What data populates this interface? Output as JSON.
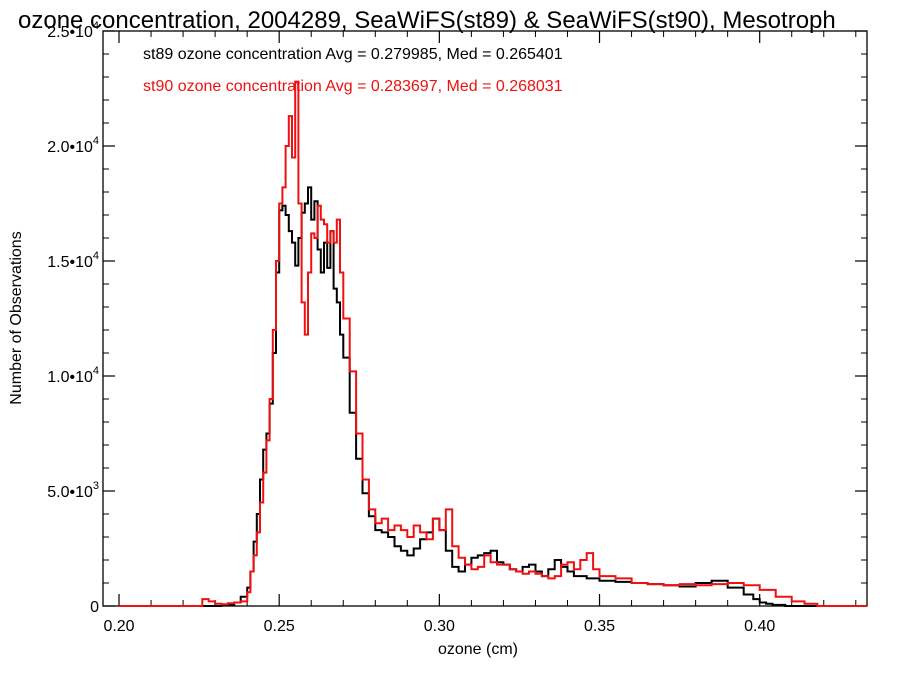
{
  "chart_data": {
    "type": "line",
    "title": "ozone concentration, 2004289, SeaWiFS(st89) & SeaWiFS(st90), Mesotroph",
    "xlabel": "ozone (cm)",
    "ylabel": "Number of Observations",
    "xlim": [
      0.195,
      0.4335
    ],
    "ylim": [
      0,
      25000
    ],
    "x_ticks": [
      0.2,
      0.25,
      0.3,
      0.35,
      0.4
    ],
    "x_tick_labels": [
      "0.20",
      "0.25",
      "0.30",
      "0.35",
      "0.40"
    ],
    "y_ticks": [
      0,
      5000,
      10000,
      15000,
      20000,
      25000
    ],
    "y_tick_labels": [
      {
        "mant": "0",
        "exp": ""
      },
      {
        "mant": "5.0•10",
        "exp": "3"
      },
      {
        "mant": "1.0•10",
        "exp": "4"
      },
      {
        "mant": "1.5•10",
        "exp": "4"
      },
      {
        "mant": "2.0•10",
        "exp": "4"
      },
      {
        "mant": "2.5•10",
        "exp": "4"
      }
    ],
    "legend_placement": "top-left",
    "series": [
      {
        "name": "st89",
        "color": "#000000",
        "legend": "st89 ozone concentration Avg = 0.279985, Med = 0.265401",
        "x": [
          0.2,
          0.225,
          0.232,
          0.236,
          0.238,
          0.24,
          0.241,
          0.242,
          0.243,
          0.244,
          0.245,
          0.246,
          0.247,
          0.248,
          0.249,
          0.25,
          0.251,
          0.252,
          0.253,
          0.254,
          0.255,
          0.256,
          0.257,
          0.258,
          0.259,
          0.26,
          0.261,
          0.262,
          0.263,
          0.264,
          0.265,
          0.266,
          0.267,
          0.268,
          0.269,
          0.27,
          0.272,
          0.274,
          0.276,
          0.278,
          0.28,
          0.282,
          0.284,
          0.286,
          0.288,
          0.29,
          0.292,
          0.294,
          0.296,
          0.298,
          0.3,
          0.302,
          0.304,
          0.306,
          0.308,
          0.31,
          0.312,
          0.314,
          0.316,
          0.318,
          0.32,
          0.322,
          0.324,
          0.326,
          0.328,
          0.33,
          0.332,
          0.334,
          0.336,
          0.338,
          0.34,
          0.342,
          0.344,
          0.346,
          0.348,
          0.35,
          0.355,
          0.36,
          0.365,
          0.37,
          0.375,
          0.38,
          0.385,
          0.39,
          0.395,
          0.398,
          0.4,
          0.402,
          0.404,
          0.408,
          0.412
        ],
        "values": [
          0,
          0,
          50,
          150,
          400,
          800,
          1500,
          2800,
          4000,
          5500,
          6800,
          7500,
          8800,
          11000,
          14500,
          17200,
          17400,
          17000,
          16300,
          15800,
          14800,
          16000,
          17100,
          17500,
          18200,
          16800,
          17600,
          15500,
          14500,
          15800,
          14700,
          16300,
          13800,
          13200,
          11800,
          10800,
          8400,
          6400,
          4900,
          3900,
          3300,
          3200,
          3000,
          2600,
          2400,
          2200,
          2500,
          2900,
          3200,
          3800,
          3300,
          2400,
          1700,
          1500,
          1800,
          2100,
          2200,
          2300,
          2400,
          1900,
          1800,
          1600,
          1500,
          1700,
          1800,
          1500,
          1300,
          1600,
          2000,
          1700,
          1500,
          1300,
          1300,
          1200,
          1200,
          1100,
          1050,
          1000,
          950,
          900,
          850,
          1000,
          1100,
          800,
          500,
          300,
          150,
          100,
          50,
          0,
          0
        ]
      },
      {
        "name": "st90",
        "color": "#ee1111",
        "legend": "st90 ozone concentration Avg = 0.283697, Med = 0.268031",
        "x": [
          0.2,
          0.222,
          0.226,
          0.228,
          0.23,
          0.232,
          0.234,
          0.236,
          0.238,
          0.24,
          0.241,
          0.242,
          0.243,
          0.244,
          0.245,
          0.246,
          0.247,
          0.248,
          0.249,
          0.25,
          0.251,
          0.252,
          0.253,
          0.254,
          0.255,
          0.256,
          0.257,
          0.258,
          0.259,
          0.26,
          0.261,
          0.262,
          0.263,
          0.264,
          0.265,
          0.266,
          0.267,
          0.268,
          0.269,
          0.27,
          0.272,
          0.274,
          0.276,
          0.278,
          0.28,
          0.282,
          0.284,
          0.286,
          0.288,
          0.29,
          0.292,
          0.294,
          0.296,
          0.298,
          0.3,
          0.302,
          0.304,
          0.306,
          0.308,
          0.31,
          0.312,
          0.314,
          0.316,
          0.318,
          0.32,
          0.322,
          0.324,
          0.326,
          0.328,
          0.33,
          0.332,
          0.334,
          0.336,
          0.338,
          0.34,
          0.342,
          0.344,
          0.346,
          0.348,
          0.35,
          0.355,
          0.36,
          0.365,
          0.37,
          0.375,
          0.38,
          0.385,
          0.39,
          0.395,
          0.4,
          0.405,
          0.41,
          0.414,
          0.418,
          0.42
        ],
        "values": [
          0,
          0,
          300,
          200,
          100,
          80,
          120,
          150,
          200,
          600,
          1500,
          2200,
          3200,
          4500,
          5800,
          7200,
          9000,
          12000,
          15000,
          17500,
          18200,
          20000,
          21300,
          19500,
          22800,
          17500,
          13200,
          11800,
          14500,
          16200,
          16000,
          17400,
          16800,
          16600,
          15800,
          16300,
          15800,
          16800,
          14500,
          12500,
          10200,
          7500,
          5500,
          4200,
          3600,
          3800,
          3300,
          3500,
          3300,
          3000,
          3500,
          3200,
          2900,
          3800,
          3300,
          4200,
          2600,
          2100,
          1800,
          1600,
          1700,
          2200,
          1900,
          1800,
          1800,
          1600,
          1500,
          1400,
          1500,
          1400,
          1300,
          1200,
          1300,
          1800,
          1900,
          1600,
          2000,
          2300,
          1600,
          1300,
          1200,
          1000,
          950,
          900,
          950,
          900,
          950,
          1000,
          900,
          700,
          400,
          200,
          100,
          0,
          0
        ]
      }
    ]
  }
}
